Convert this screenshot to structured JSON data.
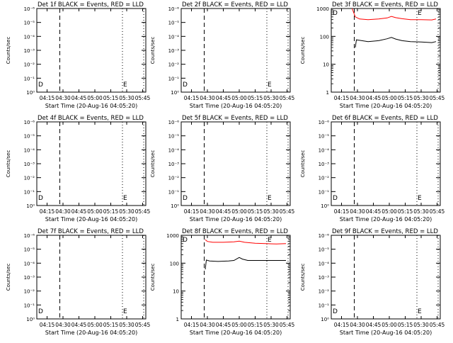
{
  "page": {
    "background": "#ffffff",
    "axis_color": "#000000",
    "event_color": "#000000",
    "lld_color": "#ff0000"
  },
  "common": {
    "ylabel": "Counts/sec",
    "xlabel": "Start Time (20-Aug-16 04:05:20)",
    "x_ticks": [
      "04:15",
      "04:30",
      "04:45",
      "05:00",
      "05:15",
      "05:30",
      "05:45"
    ],
    "x_tick_minutes": [
      15,
      30,
      45,
      60,
      75,
      90,
      105
    ],
    "xlim_minutes": [
      5.33,
      108
    ],
    "dashed_line_minute": 27,
    "dotted_line_minutes": [
      86,
      106
    ],
    "marker_d_label": "D",
    "marker_e_label": "E",
    "empty_yticks": [
      "10⁻⁶",
      "10⁻⁵",
      "10⁻⁴",
      "10⁻³",
      "10⁻²",
      "10⁻¹",
      "10⁰"
    ],
    "empty_ylim": [
      1,
      1000000
    ],
    "data_yticks": [
      "1000",
      "100",
      "10",
      "1"
    ],
    "data_ylim": [
      1,
      1000
    ]
  },
  "chart_data": [
    {
      "type": "line",
      "title": "Det 1f BLACK = Events, RED = LLD",
      "has_data": false
    },
    {
      "type": "line",
      "title": "Det 2f BLACK = Events, RED = LLD",
      "has_data": false
    },
    {
      "type": "line",
      "title": "Det 3f BLACK = Events, RED = LLD",
      "has_data": true,
      "scale": "log",
      "series": [
        {
          "name": "LLD",
          "color": "#ff0000",
          "x": [
            25,
            28,
            32,
            40,
            50,
            58,
            62,
            66,
            72,
            80,
            90,
            100,
            104
          ],
          "y": [
            1000,
            500,
            420,
            400,
            420,
            460,
            520,
            470,
            430,
            400,
            400,
            390,
            420
          ]
        },
        {
          "name": "Events",
          "color": "#000000",
          "x": [
            28,
            29,
            32,
            40,
            50,
            58,
            62,
            66,
            72,
            80,
            90,
            100,
            104
          ],
          "y": [
            40,
            75,
            72,
            65,
            70,
            82,
            92,
            80,
            70,
            65,
            63,
            60,
            65
          ]
        }
      ]
    },
    {
      "type": "line",
      "title": "Det 4f BLACK = Events, RED = LLD",
      "has_data": false
    },
    {
      "type": "line",
      "title": "Det 5f BLACK = Events, RED = LLD",
      "has_data": false
    },
    {
      "type": "line",
      "title": "Det 6f BLACK = Events, RED = LLD",
      "has_data": false
    },
    {
      "type": "line",
      "title": "Det 7f BLACK = Events, RED = LLD",
      "has_data": false
    },
    {
      "type": "line",
      "title": "Det 8f BLACK = Events, RED = LLD",
      "has_data": true,
      "scale": "log",
      "series": [
        {
          "name": "LLD",
          "color": "#ff0000",
          "x": [
            28,
            30,
            35,
            45,
            55,
            60,
            65,
            75,
            85,
            95,
            104
          ],
          "y": [
            700,
            600,
            560,
            560,
            580,
            620,
            560,
            520,
            500,
            490,
            500
          ]
        },
        {
          "name": "Events",
          "color": "#000000",
          "x": [
            28,
            29,
            32,
            40,
            50,
            55,
            60,
            63,
            68,
            80,
            95,
            104
          ],
          "y": [
            60,
            130,
            120,
            115,
            120,
            125,
            160,
            140,
            125,
            125,
            125,
            125
          ]
        }
      ]
    },
    {
      "type": "line",
      "title": "Det 9f BLACK = Events, RED = LLD",
      "has_data": false
    }
  ]
}
